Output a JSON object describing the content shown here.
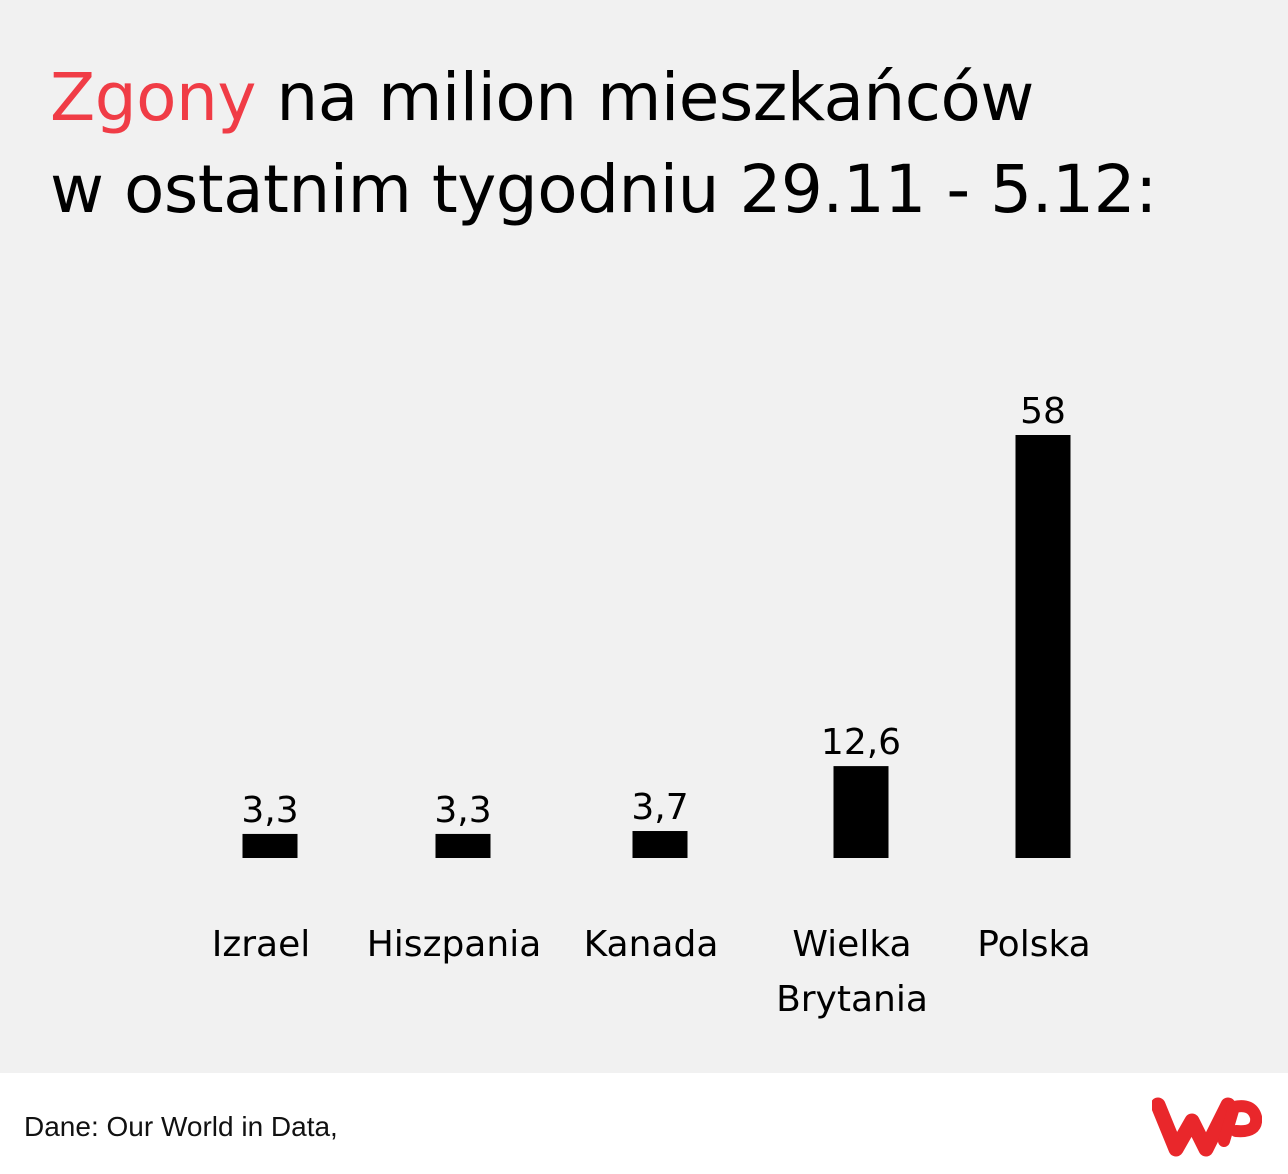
{
  "title": {
    "accent": "Zgony",
    "line1_rest": " na milion mieszkańców",
    "line2": "w ostatnim tygodniu 29.11 - 5.12:",
    "accent_color": "#f03c46"
  },
  "chart_data": {
    "type": "bar",
    "categories": [
      [
        "Izrael"
      ],
      [
        "Hiszpania"
      ],
      [
        "Kanada"
      ],
      [
        "Wielka",
        "Brytania"
      ],
      [
        "Polska"
      ]
    ],
    "values": [
      3.3,
      3.3,
      3.7,
      12.6,
      58
    ],
    "value_labels": [
      "3,3",
      "3,3",
      "3,7",
      "12,6",
      "58"
    ],
    "bar_color": "#000000",
    "axes_visible": false,
    "grid": false
  },
  "footer": {
    "source": "Dane: Our World in Data,",
    "logo": "wp-logo",
    "logo_color": "#e9272b"
  }
}
